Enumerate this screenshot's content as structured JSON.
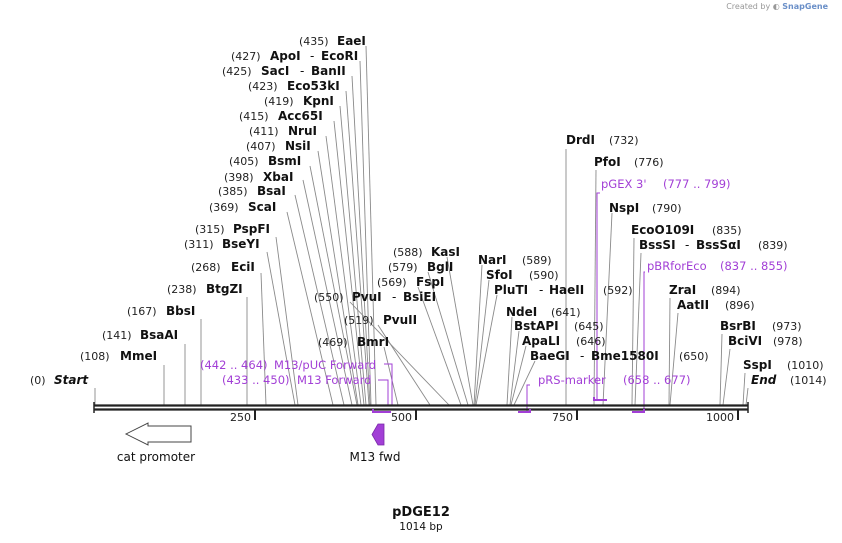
{
  "credit": {
    "prefix": "Created by",
    "brand": "SnapGene"
  },
  "map": {
    "name": "pDGE12",
    "length_label": "1014 bp",
    "length": 1014
  },
  "ends": [
    {
      "pos": "(0)",
      "name": "Start"
    },
    {
      "pos": "(1014)",
      "name": "End"
    }
  ],
  "sites": [
    {
      "pos": "(108)",
      "name": "MmeI"
    },
    {
      "pos": "(141)",
      "name": "BsaAI"
    },
    {
      "pos": "(167)",
      "name": "BbsI"
    },
    {
      "pos": "(238)",
      "name": "BtgZI"
    },
    {
      "pos": "(268)",
      "name": "EciI"
    },
    {
      "pos": "(311)",
      "name": "BseYI"
    },
    {
      "pos": "(315)",
      "name": "PspFI"
    },
    {
      "pos": "(369)",
      "name": "ScaI"
    },
    {
      "pos": "(385)",
      "name": "BsaI"
    },
    {
      "pos": "(398)",
      "name": "XbaI"
    },
    {
      "pos": "(405)",
      "name": "BsmI"
    },
    {
      "pos": "(407)",
      "name": "NsiI"
    },
    {
      "pos": "(411)",
      "name": "NruI"
    },
    {
      "pos": "(415)",
      "name": "Acc65I"
    },
    {
      "pos": "(419)",
      "name": "KpnI"
    },
    {
      "pos": "(423)",
      "name": "Eco53kI"
    },
    {
      "pos": "(425)",
      "name": "SacI",
      "dash": "-",
      "name2": "BanII"
    },
    {
      "pos": "(427)",
      "name": "ApoI",
      "dash": "-",
      "name2": "EcoRI"
    },
    {
      "pos": "(435)",
      "name": "EaeI"
    },
    {
      "pos": "(469)",
      "name": "BmrI"
    },
    {
      "pos": "(519)",
      "name": "PvuII"
    },
    {
      "pos": "(550)",
      "name": "PvuI",
      "dash": "-",
      "name2": "BsiEI"
    },
    {
      "pos": "(569)",
      "name": "FspI"
    },
    {
      "pos": "(579)",
      "name": "BglI"
    },
    {
      "pos": "(588)",
      "name": "KasI"
    },
    {
      "pos": "(589)",
      "name": "NarI"
    },
    {
      "pos": "(590)",
      "name": "SfoI"
    },
    {
      "pos": "(592)",
      "name": "PluTI",
      "dash": "-",
      "name2": "HaeII"
    },
    {
      "pos": "(641)",
      "name": "NdeI"
    },
    {
      "pos": "(645)",
      "name": "BstAPI"
    },
    {
      "pos": "(646)",
      "name": "ApaLI"
    },
    {
      "pos": "(650)",
      "name": "BaeGI",
      "dash": "-",
      "name2": "Bme1580I"
    },
    {
      "pos": "(732)",
      "name": "DrdI"
    },
    {
      "pos": "(776)",
      "name": "PfoI"
    },
    {
      "pos": "(790)",
      "name": "NspI"
    },
    {
      "pos": "(835)",
      "name": "EcoO109I"
    },
    {
      "pos": "(839)",
      "name": "BssSI",
      "dash": "-",
      "name2": "BssSαI"
    },
    {
      "pos": "(894)",
      "name": "ZraI"
    },
    {
      "pos": "(896)",
      "name": "AatII"
    },
    {
      "pos": "(973)",
      "name": "BsrBI"
    },
    {
      "pos": "(978)",
      "name": "BciVI"
    },
    {
      "pos": "(1010)",
      "name": "SspI"
    }
  ],
  "primers": [
    {
      "range": "(442 .. 464)",
      "name": "M13/pUC Forward"
    },
    {
      "range": "(433 .. 450)",
      "name": "M13 Forward"
    },
    {
      "range": "",
      "name": "pRS-marker"
    },
    {
      "range": "(658 .. 677)",
      "name": ""
    },
    {
      "range": "(777 .. 799)",
      "name": "pGEX 3'"
    },
    {
      "range": "(837 .. 855)",
      "name": "pBRforEco"
    }
  ],
  "ruler": [
    "250",
    "500",
    "750",
    "1000"
  ],
  "features": [
    {
      "name": "cat promoter",
      "direction": "left"
    },
    {
      "name": "M13 fwd",
      "direction": "left"
    }
  ],
  "colors": {
    "primer": "#a23fd6",
    "backbone": "#222222",
    "feature": "#ffffff"
  }
}
